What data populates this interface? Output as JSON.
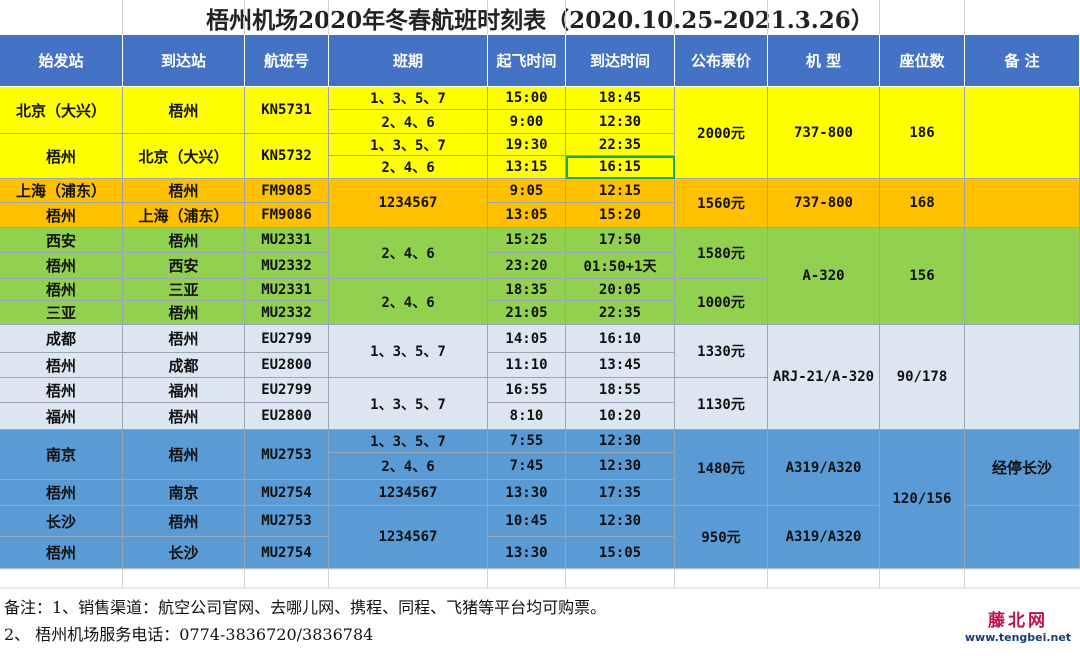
{
  "title": "梧州机场2020年冬春航班时刻表（2020.10.25-2021.3.26）",
  "headers": [
    "始发站",
    "到达站",
    "航班号",
    "班期",
    "起飞时间",
    "到达时间",
    "公布票价",
    "机 型",
    "座位数",
    "备 注"
  ],
  "colors": {
    "header": "#4472c4",
    "yellow": "#ffff00",
    "orange": "#ffc000",
    "green": "#92d050",
    "lightblue": "#dce6f1",
    "blue": "#5b9bd5",
    "gridline": "#9aa6b4"
  },
  "groups": {
    "beijing": {
      "fare": "2000元",
      "aircraft": "737-800",
      "seats": "186",
      "remark": ""
    },
    "shanghai": {
      "schedule": "1234567",
      "fare": "1560元",
      "aircraft": "737-800",
      "seats": "168",
      "remark": ""
    },
    "xian": {
      "schedule": "2、4、6",
      "fare": "1580元"
    },
    "sanya": {
      "schedule": "2、4、6",
      "fare": "1000元"
    },
    "xian_sanya": {
      "aircraft": "A-320",
      "seats": "156",
      "remark": ""
    },
    "chengdu": {
      "schedule": "1、3、5、7",
      "fare": "1330元"
    },
    "fuzhou": {
      "schedule": "1、3、5、7",
      "fare": "1130元"
    },
    "chengdu_fuzhou": {
      "aircraft": "ARJ-21/A-320",
      "seats": "90/178",
      "remark": ""
    },
    "nanjing": {
      "origin": "南京",
      "dest": "梧州",
      "flight": "MU2753",
      "fare": "1480元",
      "aircraft": "A319/A320",
      "remark": "经停长沙"
    },
    "nanjing_changsha": {
      "seats": "120/156"
    },
    "changsha": {
      "schedule": "1234567",
      "fare": "950元",
      "aircraft": "A319/A320"
    }
  },
  "rows": [
    {
      "origin": "北京（大兴）",
      "dest": "梧州",
      "flight": "KN5731",
      "schedule": "1、3、5、7",
      "dep": "15:00",
      "arr": "18:45"
    },
    {
      "schedule": "2、4、6",
      "dep": "9:00",
      "arr": "12:30"
    },
    {
      "origin": "梧州",
      "dest": "北京（大兴）",
      "flight": "KN5732",
      "schedule": "1、3、5、7",
      "dep": "19:30",
      "arr": "22:35"
    },
    {
      "schedule": "2、4、6",
      "dep": "13:15",
      "arr": "16:15"
    },
    {
      "origin": "上海（浦东）",
      "dest": "梧州",
      "flight": "FM9085",
      "dep": "9:05",
      "arr": "12:15"
    },
    {
      "origin": "梧州",
      "dest": "上海（浦东）",
      "flight": "FM9086",
      "dep": "13:05",
      "arr": "15:20"
    },
    {
      "origin": "西安",
      "dest": "梧州",
      "flight": "MU2331",
      "dep": "15:25",
      "arr": "17:50"
    },
    {
      "origin": "梧州",
      "dest": "西安",
      "flight": "MU2332",
      "dep": "23:20",
      "arr": "01:50+1天"
    },
    {
      "origin": "梧州",
      "dest": "三亚",
      "flight": "MU2331",
      "dep": "18:35",
      "arr": "20:05"
    },
    {
      "origin": "三亚",
      "dest": "梧州",
      "flight": "MU2332",
      "dep": "21:05",
      "arr": "22:35"
    },
    {
      "origin": "成都",
      "dest": "梧州",
      "flight": "EU2799",
      "dep": "14:05",
      "arr": "16:10"
    },
    {
      "origin": "梧州",
      "dest": "成都",
      "flight": "EU2800",
      "dep": "11:10",
      "arr": "13:45"
    },
    {
      "origin": "梧州",
      "dest": "福州",
      "flight": "EU2799",
      "dep": "16:55",
      "arr": "18:55"
    },
    {
      "origin": "福州",
      "dest": "梧州",
      "flight": "EU2800",
      "dep": "8:10",
      "arr": "10:20"
    },
    {
      "schedule": "1、3、5、7",
      "dep": "7:55",
      "arr": "12:30"
    },
    {
      "schedule": "2、4、6",
      "dep": "7:45",
      "arr": "12:30"
    },
    {
      "origin": "梧州",
      "dest": "南京",
      "flight": "MU2754",
      "schedule": "1234567",
      "dep": "13:30",
      "arr": "17:35"
    },
    {
      "origin": "长沙",
      "dest": "梧州",
      "flight": "MU2753",
      "dep": "10:45",
      "arr": "12:30"
    },
    {
      "origin": "梧州",
      "dest": "长沙",
      "flight": "MU2754",
      "dep": "13:30",
      "arr": "15:05"
    }
  ],
  "notes": {
    "line1": "备注：1、销售渠道：航空公司官网、去哪儿网、携程、同程、飞猪等平台均可购票。",
    "line2": "2、 梧州机场服务电话：0774-3836720/3836784"
  },
  "watermark": {
    "name": "藤北网",
    "url": "www.tengbei.net"
  }
}
